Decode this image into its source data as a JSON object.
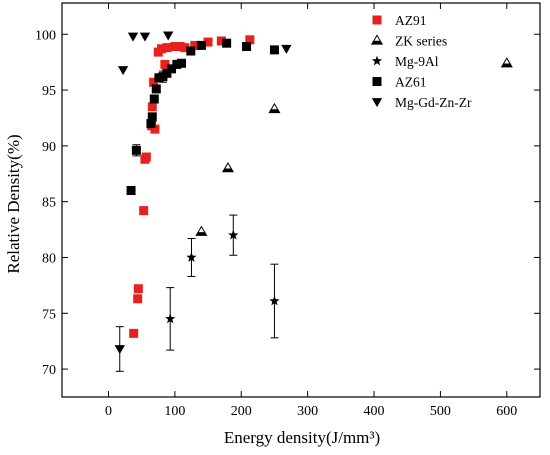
{
  "chart_data": {
    "type": "scatter",
    "title": "",
    "xlabel": "Energy density(J/mm³)",
    "ylabel": "Relative Density(%)",
    "xlim": [
      -70,
      650
    ],
    "ylim": [
      67.5,
      102.8
    ],
    "xticks": [
      0,
      100,
      200,
      300,
      400,
      500,
      600
    ],
    "yticks": [
      70,
      75,
      80,
      85,
      90,
      95,
      100
    ],
    "grid": false,
    "legend": "top-right",
    "series": [
      {
        "name": "AZ91",
        "marker": "square",
        "color": "#e8201f",
        "points": [
          {
            "x": 38,
            "y": 73.2
          },
          {
            "x": 44,
            "y": 76.3
          },
          {
            "x": 45,
            "y": 77.2
          },
          {
            "x": 53,
            "y": 84.2
          },
          {
            "x": 55,
            "y": 88.8
          },
          {
            "x": 57,
            "y": 89.0
          },
          {
            "x": 65,
            "y": 91.8
          },
          {
            "x": 66,
            "y": 93.5
          },
          {
            "x": 68,
            "y": 95.7
          },
          {
            "x": 70,
            "y": 91.5
          },
          {
            "x": 75,
            "y": 98.4
          },
          {
            "x": 80,
            "y": 98.7
          },
          {
            "x": 85,
            "y": 97.3
          },
          {
            "x": 88,
            "y": 98.8
          },
          {
            "x": 100,
            "y": 98.9
          },
          {
            "x": 108,
            "y": 98.9
          },
          {
            "x": 115,
            "y": 98.8
          },
          {
            "x": 130,
            "y": 99.0
          },
          {
            "x": 150,
            "y": 99.3
          },
          {
            "x": 170,
            "y": 99.4
          },
          {
            "x": 213,
            "y": 99.5
          }
        ]
      },
      {
        "name": "ZK series",
        "marker": "half-triangle",
        "color": "#000000",
        "points": [
          {
            "x": 140,
            "y": 82.3
          },
          {
            "x": 180,
            "y": 88.0
          },
          {
            "x": 250,
            "y": 93.3
          },
          {
            "x": 600,
            "y": 97.4
          }
        ]
      },
      {
        "name": "Mg-9Al",
        "marker": "star",
        "color": "#000000",
        "points": [
          {
            "x": 93,
            "y": 74.5,
            "err": 2.8
          },
          {
            "x": 125,
            "y": 80.0,
            "err": 1.7
          },
          {
            "x": 188,
            "y": 82.0,
            "err": 1.8
          },
          {
            "x": 250,
            "y": 76.1,
            "err": 3.3
          }
        ]
      },
      {
        "name": "AZ61",
        "marker": "square",
        "color": "#000000",
        "points": [
          {
            "x": 34,
            "y": 86.0
          },
          {
            "x": 42,
            "y": 89.6,
            "err": 0.5
          },
          {
            "x": 64,
            "y": 92.0
          },
          {
            "x": 66,
            "y": 92.6
          },
          {
            "x": 69,
            "y": 94.2
          },
          {
            "x": 72,
            "y": 95.1
          },
          {
            "x": 76,
            "y": 96.1
          },
          {
            "x": 82,
            "y": 96.2,
            "err": 0.5
          },
          {
            "x": 88,
            "y": 96.5
          },
          {
            "x": 95,
            "y": 96.9
          },
          {
            "x": 103,
            "y": 97.3
          },
          {
            "x": 110,
            "y": 97.4
          },
          {
            "x": 124,
            "y": 98.5
          },
          {
            "x": 140,
            "y": 99.0
          },
          {
            "x": 178,
            "y": 99.2
          },
          {
            "x": 208,
            "y": 98.9
          },
          {
            "x": 250,
            "y": 98.6
          }
        ]
      },
      {
        "name": "Mg-Gd-Zn-Zr",
        "marker": "triangle-down",
        "color": "#000000",
        "points": [
          {
            "x": 17,
            "y": 71.8,
            "err": 2.0
          },
          {
            "x": 22,
            "y": 96.8
          },
          {
            "x": 37,
            "y": 99.8
          },
          {
            "x": 55,
            "y": 99.8
          },
          {
            "x": 90,
            "y": 99.9
          },
          {
            "x": 268,
            "y": 98.7
          }
        ]
      }
    ]
  }
}
